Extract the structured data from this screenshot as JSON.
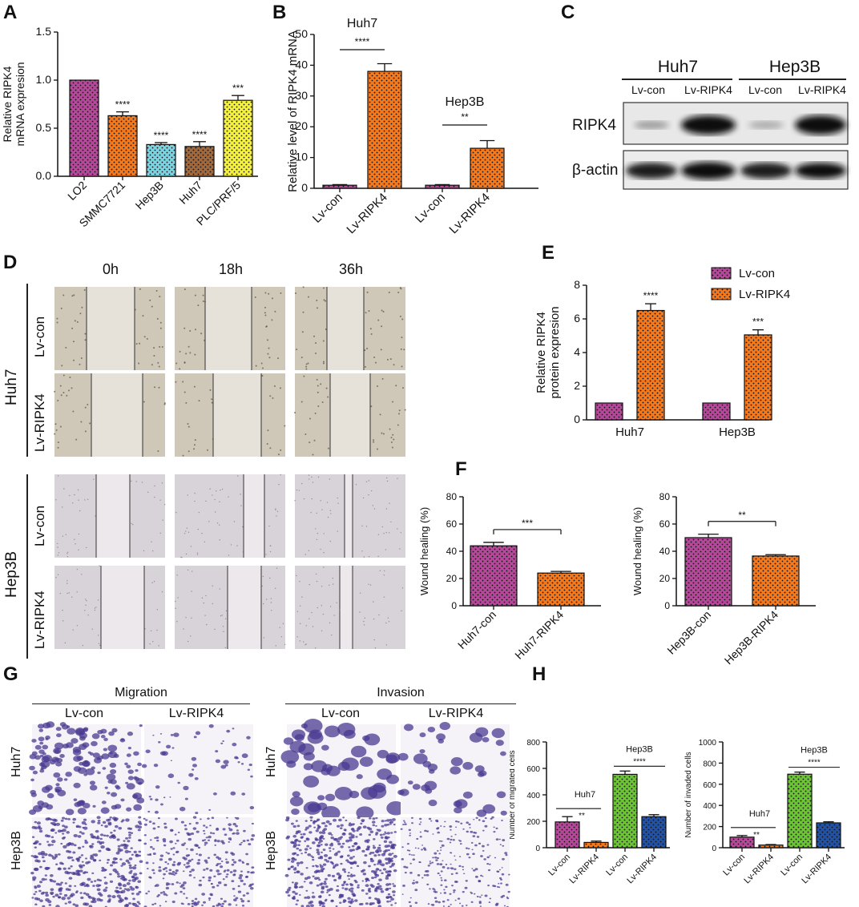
{
  "colors": {
    "purple": "#b24a98",
    "orange": "#f07a23",
    "cyan": "#7fd3e0",
    "brown": "#a06a40",
    "yellow": "#f4f046",
    "green": "#6ec23a",
    "blue": "#2452a0"
  },
  "panels": {
    "A": "A",
    "B": "B",
    "C": "C",
    "D": "D",
    "E": "E",
    "F": "F",
    "G": "G",
    "H": "H"
  },
  "chart_data": [
    {
      "id": "A",
      "type": "bar",
      "categories": [
        "LO2",
        "SMMC7721",
        "Hep3B",
        "Huh7",
        "PLC/PRF/5"
      ],
      "values": [
        1.0,
        0.63,
        0.33,
        0.31,
        0.79
      ],
      "errors": [
        0,
        0.04,
        0.02,
        0.05,
        0.05
      ],
      "significance": [
        "",
        "****",
        "****",
        "****",
        "***"
      ],
      "bar_colors": [
        "purple",
        "orange",
        "cyan",
        "brown",
        "yellow"
      ],
      "ylabel": "Relative RIPK4\nmRNA expresion",
      "ylim": [
        0,
        1.5
      ],
      "yticks": [
        "0.0",
        "0.5",
        "1.0",
        "1.5"
      ]
    },
    {
      "id": "B",
      "type": "bar",
      "categories": [
        "Lv-con",
        "Lv-RIPK4",
        "Lv-con",
        "Lv-RIPK4"
      ],
      "values": [
        1,
        38,
        1,
        13
      ],
      "errors": [
        0.2,
        2.5,
        0.2,
        2.5
      ],
      "bar_colors": [
        "purple",
        "orange",
        "purple",
        "orange"
      ],
      "groups": [
        {
          "name": "Huh7",
          "sig": "****"
        },
        {
          "name": "Hep3B",
          "sig": "**"
        }
      ],
      "ylabel": "Relative level  of RIPK4 mRNA",
      "ylim": [
        0,
        50
      ],
      "yticks": [
        "0",
        "10",
        "20",
        "30",
        "40",
        "50"
      ]
    },
    {
      "id": "E",
      "type": "bar",
      "categories": [
        "Huh7",
        "Hep3B"
      ],
      "series": [
        {
          "name": "Lv-con",
          "values": [
            1,
            1
          ],
          "errors": [
            0,
            0
          ]
        },
        {
          "name": "Lv-RIPK4",
          "values": [
            6.5,
            5.05
          ],
          "errors": [
            0.4,
            0.3
          ]
        }
      ],
      "significance": [
        "****",
        "***"
      ],
      "ylabel": "Relative RIPK4\nprotein expresion",
      "ylim": [
        0,
        8
      ],
      "yticks": [
        "0",
        "2",
        "4",
        "6",
        "8"
      ],
      "legend": "top-right"
    },
    {
      "id": "F1",
      "type": "bar",
      "categories": [
        "Huh7-con",
        "Huh7-RIPK4"
      ],
      "values": [
        44,
        24
      ],
      "errors": [
        2.5,
        1.2
      ],
      "significance": "***",
      "bar_colors": [
        "purple",
        "orange"
      ],
      "ylabel": "Wound healing (%)",
      "ylim": [
        0,
        80
      ],
      "yticks": [
        "0",
        "20",
        "40",
        "60",
        "80"
      ]
    },
    {
      "id": "F2",
      "type": "bar",
      "categories": [
        "Hep3B-con",
        "Hep3B-RIPK4"
      ],
      "values": [
        50,
        36.5
      ],
      "errors": [
        2.5,
        1
      ],
      "significance": "**",
      "bar_colors": [
        "purple",
        "orange"
      ],
      "ylabel": "Wound healing (%)",
      "ylim": [
        0,
        80
      ],
      "yticks": [
        "0",
        "20",
        "40",
        "60",
        "80"
      ]
    },
    {
      "id": "H1",
      "type": "bar",
      "categories": [
        "Lv-con",
        "Lv-RIPK4",
        "Lv-con",
        "Lv-RIPK4"
      ],
      "values": [
        195,
        40,
        555,
        235
      ],
      "errors": [
        40,
        10,
        25,
        15
      ],
      "bar_colors": [
        "purple",
        "orange",
        "green",
        "blue"
      ],
      "groups": [
        {
          "name": "Huh7",
          "sig": "**"
        },
        {
          "name": "Hep3B",
          "sig": "****"
        }
      ],
      "ylabel": "Number of migrated cells",
      "ylim": [
        0,
        800
      ],
      "yticks": [
        "0",
        "200",
        "400",
        "600",
        "800"
      ]
    },
    {
      "id": "H2",
      "type": "bar",
      "categories": [
        "Lv-con",
        "Lv-RIPK4",
        "Lv-con",
        "Lv-RIPK4"
      ],
      "values": [
        100,
        25,
        695,
        235
      ],
      "errors": [
        15,
        5,
        20,
        10
      ],
      "bar_colors": [
        "purple",
        "orange",
        "green",
        "blue"
      ],
      "groups": [
        {
          "name": "Huh7",
          "sig": "**"
        },
        {
          "name": "Hep3B",
          "sig": "****"
        }
      ],
      "ylabel": "Number of invaded cells",
      "ylim": [
        0,
        1000
      ],
      "yticks": [
        "0",
        "200",
        "400",
        "600",
        "800",
        "1000"
      ]
    }
  ],
  "western": {
    "groups": [
      "Huh7",
      "Hep3B"
    ],
    "lanes": [
      "Lv-con",
      "Lv-RIPK4",
      "Lv-con",
      "Lv-RIPK4"
    ],
    "rows": [
      "RIPK4",
      "β-actin"
    ]
  },
  "wound": {
    "times": [
      "0h",
      "18h",
      "36h"
    ],
    "cells": [
      "Huh7",
      "Hep3B"
    ],
    "rows": [
      "Lv-con",
      "Lv-RIPK4",
      "Lv-con",
      "Lv-RIPK4"
    ]
  },
  "transwell": {
    "sections": [
      "Migration",
      "Invasion"
    ],
    "cols": [
      "Lv-con",
      "Lv-RIPK4",
      "Lv-con",
      "Lv-RIPK4"
    ],
    "rows": [
      "Huh7",
      "Hep3B",
      "Huh7",
      "Hep3B"
    ]
  }
}
